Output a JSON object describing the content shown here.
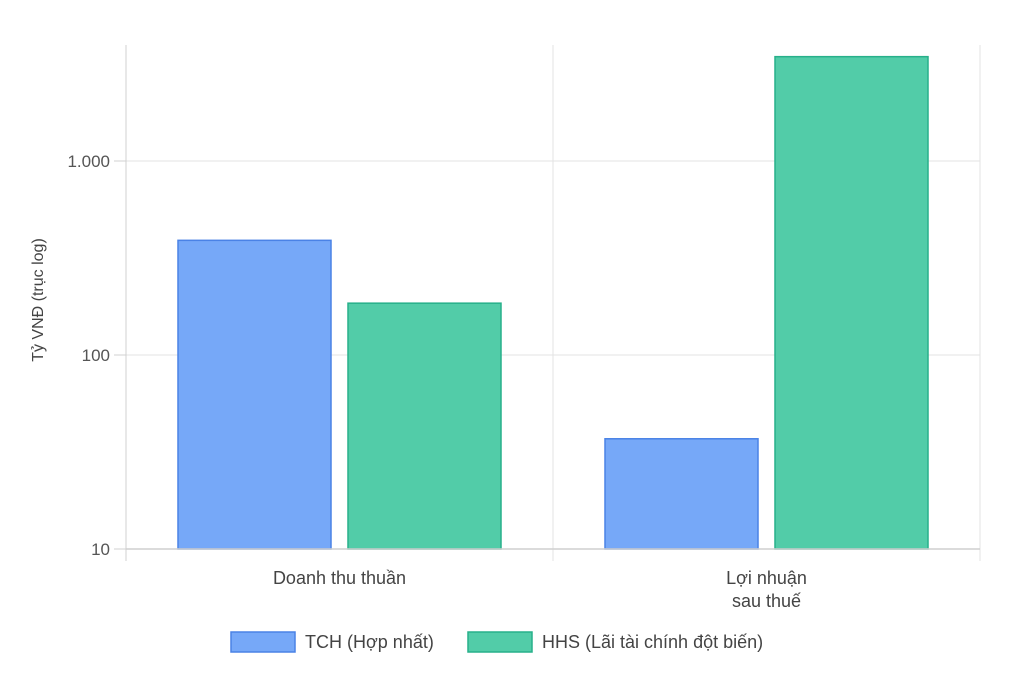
{
  "chart_data": {
    "type": "bar",
    "title": "",
    "xlabel": "",
    "ylabel": "Tỷ VNĐ (trục log)",
    "yscale": "log",
    "ylim": [
      10,
      4000
    ],
    "yticks": [
      10,
      100,
      1000
    ],
    "ytick_labels": [
      "10",
      "100",
      "1.000"
    ],
    "categories": [
      [
        "Doanh thu thuần"
      ],
      [
        "Lợi nhuận",
        "sau thuế"
      ]
    ],
    "series": [
      {
        "name": "TCH (Hợp nhất)",
        "color": "#76a8f8",
        "border": "#4a82e6",
        "values": [
          390,
          37
        ]
      },
      {
        "name": "HHS (Lãi tài chính đột biến)",
        "color": "#52cca8",
        "border": "#27b08a",
        "values": [
          185,
          3450
        ]
      }
    ],
    "legend": "bottom",
    "grid": true
  }
}
